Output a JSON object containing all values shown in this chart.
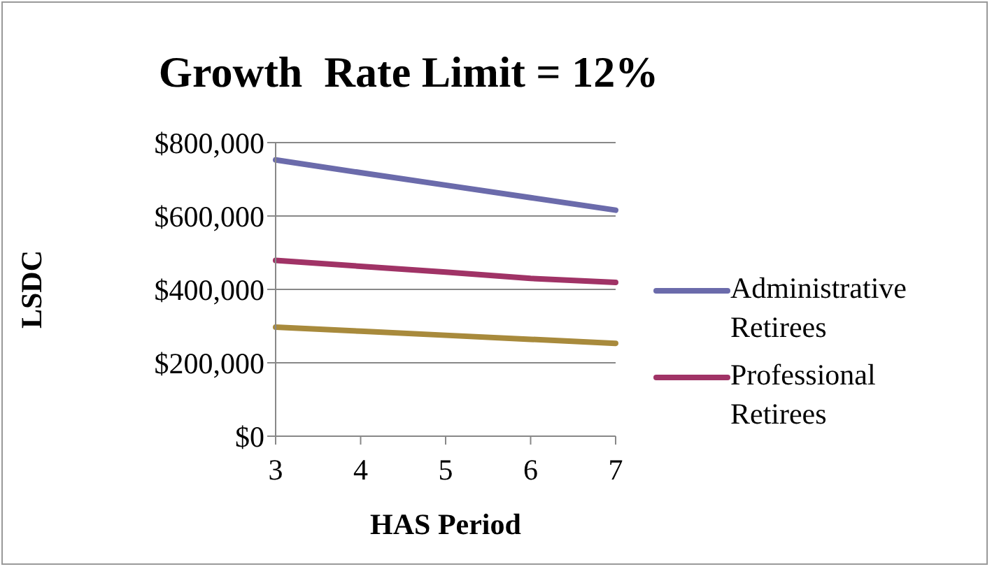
{
  "chart_data": {
    "type": "line",
    "title": "Growth  Rate Limit = 12%",
    "xlabel": "HAS Period",
    "ylabel": "LSDC",
    "categories": [
      "3",
      "4",
      "5",
      "6",
      "7"
    ],
    "series": [
      {
        "name": "Administrative Retirees",
        "color": "#6b6bab",
        "values": [
          753000,
          718000,
          684000,
          650000,
          616000
        ]
      },
      {
        "name": "Professional Retirees",
        "color": "#a03366",
        "values": [
          479000,
          463000,
          447000,
          430000,
          419000
        ]
      },
      {
        "color": "#a88a3c",
        "values": [
          297000,
          286000,
          275000,
          264000,
          253000
        ]
      }
    ],
    "ylim": [
      0,
      800000
    ],
    "yticks": [
      {
        "value": 0,
        "label": "$0"
      },
      {
        "value": 200000,
        "label": "$200,000"
      },
      {
        "value": 400000,
        "label": "$400,000"
      },
      {
        "value": 600000,
        "label": "$600,000"
      },
      {
        "value": 800000,
        "label": "$800,000"
      }
    ],
    "grid": "y",
    "legend": "right",
    "marker": "none",
    "line_style": "solid"
  }
}
